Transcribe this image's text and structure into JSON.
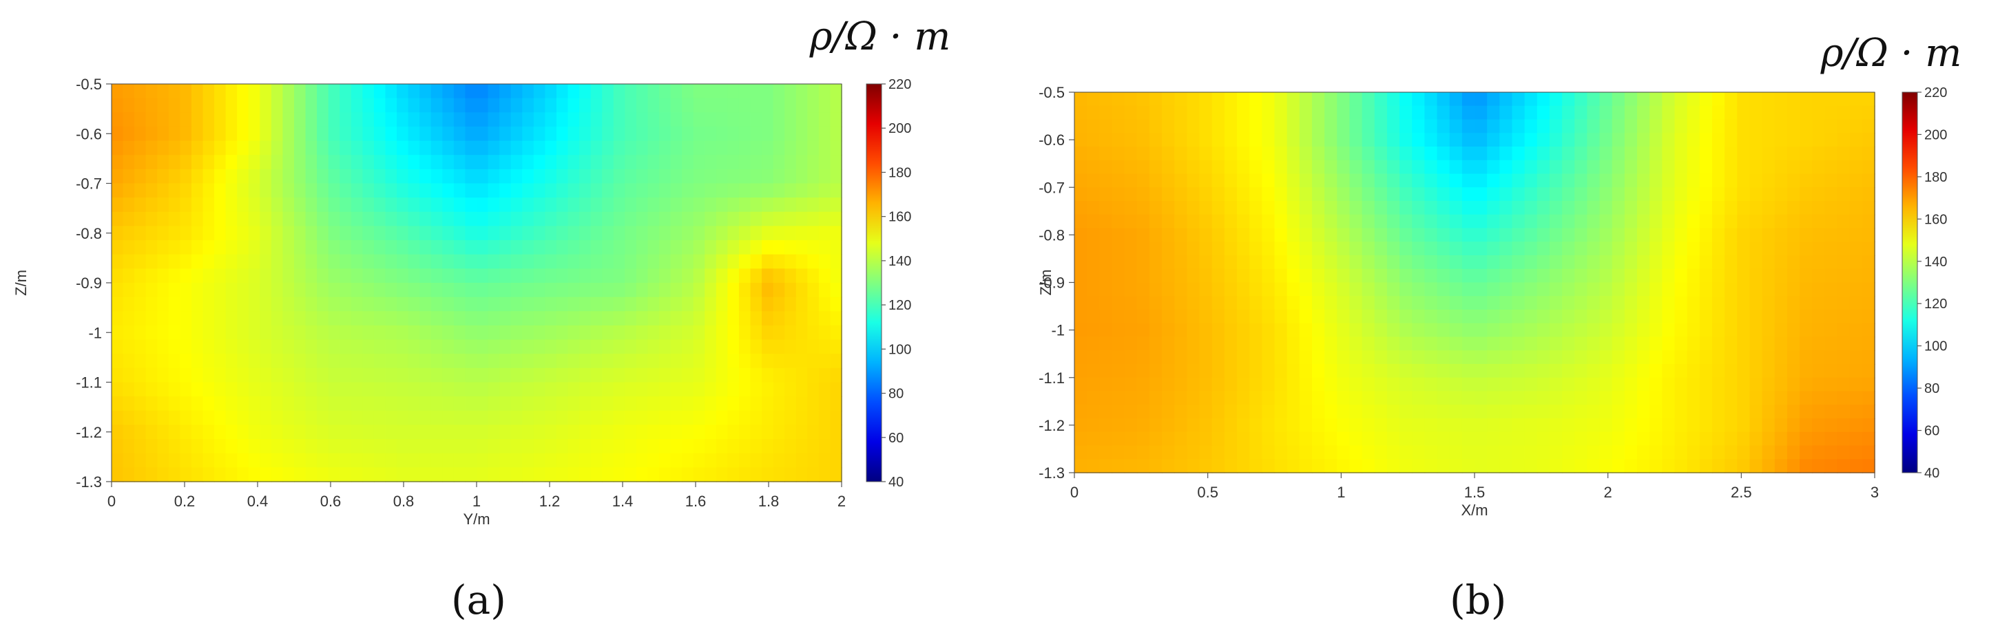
{
  "chart_data": [
    {
      "type": "heatmap",
      "panel_label": "(a)",
      "colorbar_title": "ρ/Ω · m",
      "xlabel": "Y/m",
      "ylabel": "Z/m",
      "xlim": [
        0,
        2
      ],
      "ylim": [
        -1.3,
        -0.5
      ],
      "x_ticks": [
        "0",
        "0.2",
        "0.4",
        "0.6",
        "0.8",
        "1",
        "1.2",
        "1.4",
        "1.6",
        "1.8",
        "2"
      ],
      "y_ticks": [
        "-0.5",
        "-0.6",
        "-0.7",
        "-0.8",
        "-0.9",
        "-1",
        "-1.1",
        "-1.2",
        "-1.3"
      ],
      "colorbar_ticks": [
        "220",
        "200",
        "180",
        "160",
        "140",
        "120",
        "100",
        "80",
        "60",
        "40"
      ],
      "value_range": [
        40,
        220
      ],
      "colormap": "jet",
      "x": [
        0.0,
        0.2,
        0.4,
        0.6,
        0.8,
        1.0,
        1.2,
        1.4,
        1.6,
        1.8,
        2.0
      ],
      "z": [
        -0.5,
        -0.6,
        -0.7,
        -0.8,
        -0.9,
        -1.0,
        -1.1,
        -1.2,
        -1.3
      ],
      "values": [
        [
          170,
          165,
          150,
          120,
          100,
          85,
          100,
          120,
          130,
          130,
          140
        ],
        [
          172,
          165,
          150,
          120,
          105,
          92,
          105,
          120,
          128,
          130,
          140
        ],
        [
          168,
          160,
          145,
          125,
          112,
          102,
          112,
          124,
          130,
          132,
          140
        ],
        [
          162,
          157,
          148,
          130,
          122,
          112,
          120,
          128,
          135,
          148,
          150
        ],
        [
          158,
          152,
          146,
          135,
          130,
          125,
          128,
          130,
          140,
          165,
          150
        ],
        [
          156,
          152,
          146,
          140,
          138,
          133,
          136,
          140,
          145,
          160,
          155
        ],
        [
          158,
          153,
          148,
          143,
          142,
          140,
          143,
          146,
          148,
          155,
          160
        ],
        [
          162,
          156,
          150,
          146,
          145,
          145,
          147,
          150,
          152,
          156,
          160
        ],
        [
          163,
          158,
          153,
          150,
          148,
          148,
          150,
          152,
          155,
          158,
          160
        ]
      ]
    },
    {
      "type": "heatmap",
      "panel_label": "(b)",
      "colorbar_title": "ρ/Ω · m",
      "xlabel": "X/m",
      "ylabel": "Z/m",
      "xlim": [
        0,
        3
      ],
      "ylim": [
        -1.3,
        -0.5
      ],
      "x_ticks": [
        "0",
        "0.5",
        "1",
        "1.5",
        "2",
        "2.5",
        "3"
      ],
      "y_ticks": [
        "-0.5",
        "-0.6",
        "-0.7",
        "-0.8",
        "-0.9",
        "-1",
        "-1.1",
        "-1.2",
        "-1.3"
      ],
      "colorbar_ticks": [
        "220",
        "200",
        "180",
        "160",
        "140",
        "120",
        "100",
        "80",
        "60",
        "40"
      ],
      "value_range": [
        40,
        220
      ],
      "colormap": "jet",
      "x": [
        0.0,
        0.25,
        0.5,
        0.75,
        1.0,
        1.25,
        1.5,
        1.75,
        2.0,
        2.25,
        2.5,
        2.75,
        3.0
      ],
      "z": [
        -0.5,
        -0.6,
        -0.7,
        -0.8,
        -0.9,
        -1.0,
        -1.1,
        -1.2,
        -1.3
      ],
      "values": [
        [
          165,
          163,
          158,
          150,
          130,
          108,
          88,
          105,
          125,
          145,
          158,
          160,
          160
        ],
        [
          166,
          164,
          158,
          150,
          130,
          110,
          95,
          110,
          128,
          147,
          158,
          160,
          162
        ],
        [
          168,
          166,
          160,
          152,
          135,
          118,
          105,
          118,
          132,
          148,
          158,
          162,
          164
        ],
        [
          170,
          168,
          162,
          154,
          140,
          125,
          115,
          125,
          136,
          150,
          160,
          164,
          165
        ],
        [
          170,
          168,
          163,
          156,
          145,
          132,
          125,
          132,
          140,
          152,
          160,
          165,
          166
        ],
        [
          170,
          169,
          164,
          158,
          148,
          138,
          133,
          138,
          144,
          153,
          160,
          166,
          167
        ],
        [
          169,
          168,
          164,
          158,
          150,
          145,
          142,
          144,
          148,
          155,
          160,
          167,
          168
        ],
        [
          168,
          167,
          163,
          157,
          152,
          148,
          147,
          148,
          150,
          155,
          160,
          170,
          172
        ],
        [
          166,
          165,
          162,
          158,
          154,
          150,
          148,
          149,
          152,
          156,
          162,
          174,
          176
        ]
      ]
    }
  ]
}
